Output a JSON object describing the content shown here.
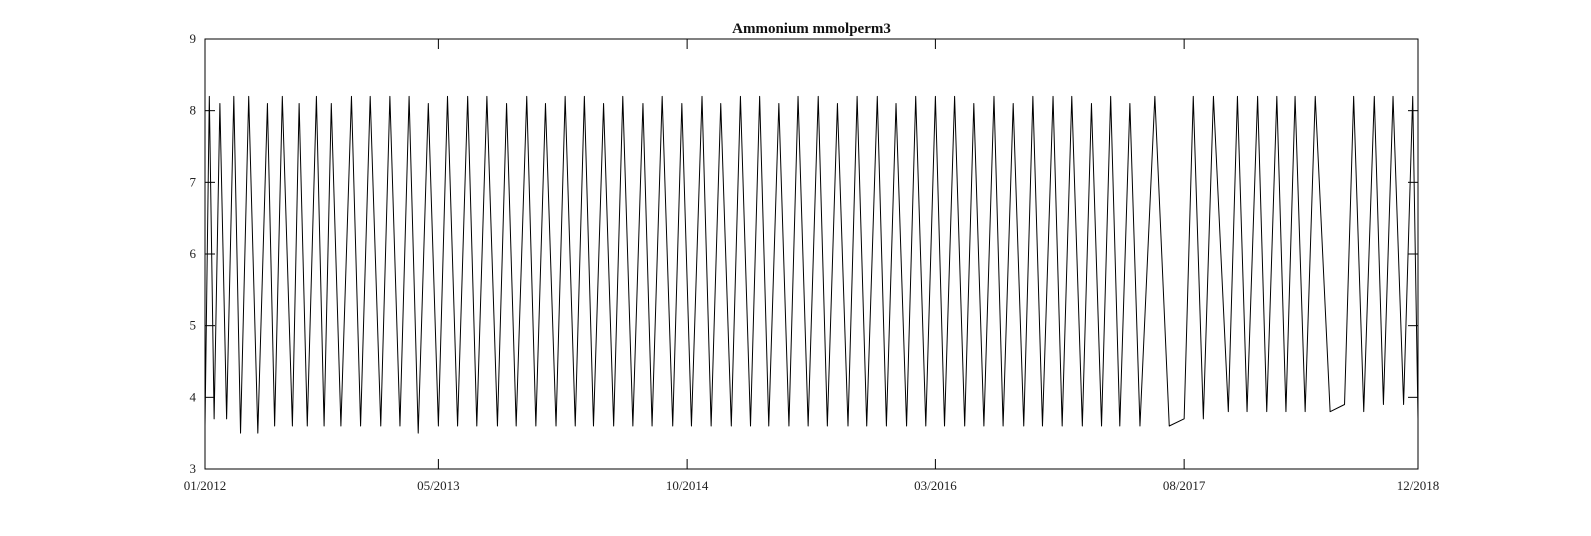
{
  "chart_data": {
    "type": "line",
    "title": "Ammonium mmolperm3",
    "xlabel": "",
    "ylabel": "",
    "x_type": "date",
    "xlim": [
      "2012-01-01",
      "2018-12-01"
    ],
    "ylim": [
      3,
      9
    ],
    "x_ticks": [
      "2012-01-01",
      "2013-05-01",
      "2014-10-01",
      "2016-03-01",
      "2017-08-01",
      "2018-12-01"
    ],
    "x_tick_labels": [
      "01/2012",
      "05/2013",
      "10/2014",
      "03/2016",
      "08/2017",
      "12/2018"
    ],
    "y_ticks": [
      3,
      4,
      5,
      6,
      7,
      8,
      9
    ],
    "y_tick_labels": [
      "3",
      "4",
      "5",
      "6",
      "7",
      "8",
      "9"
    ],
    "grid": false,
    "line_color": "#000000",
    "series": [
      {
        "x": [
          "2012-01-01",
          "2012-01-10",
          "2012-01-20",
          "2012-02-01",
          "2012-02-15",
          "2012-03-01",
          "2012-03-15",
          "2012-04-01",
          "2012-04-20",
          "2012-05-10",
          "2012-05-25",
          "2012-06-10",
          "2012-07-01",
          "2012-07-15",
          "2012-08-01",
          "2012-08-20",
          "2012-09-05",
          "2012-09-20",
          "2012-10-10",
          "2012-11-01",
          "2012-11-20",
          "2012-12-10",
          "2013-01-01",
          "2013-01-20",
          "2013-02-10",
          "2013-03-01",
          "2013-03-20",
          "2013-04-10",
          "2013-05-01",
          "2013-05-20",
          "2013-06-10",
          "2013-07-01",
          "2013-07-20",
          "2013-08-10",
          "2013-09-01",
          "2013-09-20",
          "2013-10-10",
          "2013-11-01",
          "2013-11-20",
          "2013-12-10",
          "2014-01-01",
          "2014-01-20",
          "2014-02-10",
          "2014-03-01",
          "2014-03-20",
          "2014-04-10",
          "2014-05-01",
          "2014-05-20",
          "2014-06-10",
          "2014-07-01",
          "2014-07-20",
          "2014-08-10",
          "2014-09-01",
          "2014-09-20",
          "2014-10-10",
          "2014-11-01",
          "2014-11-20",
          "2014-12-10",
          "2015-01-01",
          "2015-01-20",
          "2015-02-10",
          "2015-03-01",
          "2015-03-20",
          "2015-04-10",
          "2015-05-01",
          "2015-05-20",
          "2015-06-10",
          "2015-07-01",
          "2015-07-20",
          "2015-08-10",
          "2015-09-01",
          "2015-09-20",
          "2015-10-10",
          "2015-11-01",
          "2015-11-20",
          "2015-12-10",
          "2016-01-01",
          "2016-01-20",
          "2016-02-10",
          "2016-03-01",
          "2016-03-20",
          "2016-04-10",
          "2016-05-01",
          "2016-05-20",
          "2016-06-10",
          "2016-07-01",
          "2016-07-20",
          "2016-08-10",
          "2016-09-01",
          "2016-09-20",
          "2016-10-10",
          "2016-11-01",
          "2016-11-20",
          "2016-12-10",
          "2017-01-01",
          "2017-01-20",
          "2017-02-10",
          "2017-03-01",
          "2017-03-20",
          "2017-04-10",
          "2017-05-01",
          "2017-06-01",
          "2017-07-01",
          "2017-08-01",
          "2017-08-20",
          "2017-09-10",
          "2017-10-01",
          "2017-11-01",
          "2017-11-20",
          "2017-12-10",
          "2018-01-01",
          "2018-01-20",
          "2018-02-10",
          "2018-03-01",
          "2018-03-20",
          "2018-04-10",
          "2018-05-01",
          "2018-06-01",
          "2018-07-01",
          "2018-07-20",
          "2018-08-10",
          "2018-09-01",
          "2018-09-20",
          "2018-10-10",
          "2018-11-01",
          "2018-11-20",
          "2018-12-01"
        ],
        "values": [
          3.6,
          8.2,
          3.7,
          8.1,
          3.7,
          8.2,
          3.5,
          8.2,
          3.5,
          8.1,
          3.6,
          8.2,
          3.6,
          8.1,
          3.6,
          8.2,
          3.6,
          8.1,
          3.6,
          8.2,
          3.6,
          8.2,
          3.6,
          8.2,
          3.6,
          8.2,
          3.5,
          8.1,
          3.6,
          8.2,
          3.6,
          8.2,
          3.6,
          8.2,
          3.6,
          8.1,
          3.6,
          8.2,
          3.6,
          8.1,
          3.6,
          8.2,
          3.6,
          8.2,
          3.6,
          8.1,
          3.6,
          8.2,
          3.6,
          8.1,
          3.6,
          8.2,
          3.6,
          8.1,
          3.6,
          8.2,
          3.6,
          8.1,
          3.6,
          8.2,
          3.6,
          8.2,
          3.6,
          8.1,
          3.6,
          8.2,
          3.6,
          8.2,
          3.6,
          8.1,
          3.6,
          8.2,
          3.6,
          8.2,
          3.6,
          8.1,
          3.6,
          8.2,
          3.6,
          8.2,
          3.6,
          8.2,
          3.6,
          8.1,
          3.6,
          8.2,
          3.6,
          8.1,
          3.6,
          8.2,
          3.6,
          8.2,
          3.6,
          8.2,
          3.6,
          8.1,
          3.6,
          8.2,
          3.6,
          8.1,
          3.6,
          8.2,
          3.6,
          3.7,
          8.2,
          3.7,
          8.2,
          3.8,
          8.2,
          3.8,
          8.2,
          3.8,
          8.2,
          3.8,
          8.2,
          3.8,
          8.2,
          3.8,
          3.9,
          8.2,
          3.8,
          8.2,
          3.9,
          8.2,
          3.9,
          8.2,
          3.7
        ]
      }
    ]
  }
}
